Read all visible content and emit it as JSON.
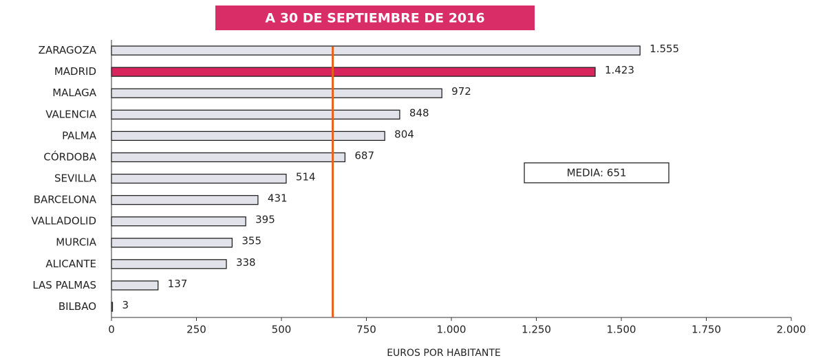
{
  "chart_data": {
    "type": "hbar",
    "title": "A 30 DE SEPTIEMBRE DE 2016",
    "x_label": "EUROS POR HABITANTE",
    "categories": [
      "ZARAGOZA",
      "MADRID",
      "MALAGA",
      "VALENCIA",
      "PALMA",
      "CÓRDOBA",
      "SEVILLA",
      "BARCELONA",
      "VALLADOLID",
      "MURCIA",
      "ALICANTE",
      "LAS PALMAS",
      "BILBAO"
    ],
    "values": [
      1555,
      1423,
      972,
      848,
      804,
      687,
      514,
      431,
      395,
      355,
      338,
      137,
      3
    ],
    "value_labels": [
      "1.555",
      "1.423",
      "972",
      "848",
      "804",
      "687",
      "514",
      "431",
      "395",
      "355",
      "338",
      "137",
      "3"
    ],
    "colors": [
      "#e2e2ea",
      "#d8255e",
      "#e2e2ea",
      "#e2e2ea",
      "#e2e2ea",
      "#e2e2ea",
      "#e2e2ea",
      "#e2e2ea",
      "#e2e2ea",
      "#e2e2ea",
      "#e2e2ea",
      "#e2e2ea",
      "#e2e2ea"
    ],
    "xlim": [
      0,
      2000
    ],
    "xticks": [
      0,
      250,
      500,
      750,
      {
        "value": 1000,
        "label": "1.000"
      },
      {
        "value": 1250,
        "label": "1.250"
      },
      {
        "value": 1500,
        "label": "1.500"
      },
      {
        "value": 1750,
        "label": "1.750"
      },
      {
        "value": 2000,
        "label": "2.000"
      }
    ],
    "reference_line": {
      "value": 651,
      "label": "MEDIA: 651",
      "color": "#e8601c"
    }
  }
}
